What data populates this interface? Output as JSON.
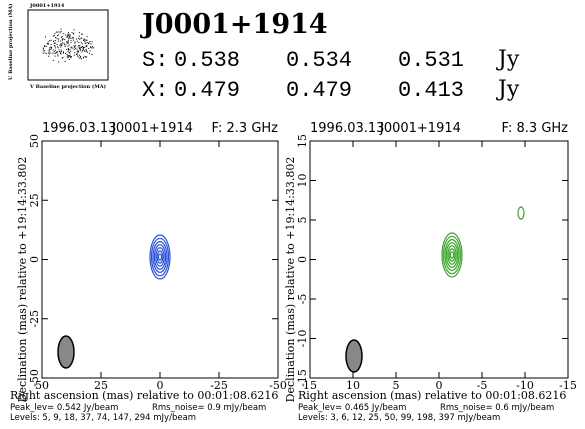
{
  "uv_plot": {
    "title": "J0001+1914",
    "x_label": "V Baseline projection (MA)",
    "y_label": "U Baseline projection (MA)"
  },
  "header": {
    "title": "J0001+1914",
    "rows": [
      {
        "band": "S:",
        "values": [
          "0.538",
          "0.534",
          "0.531"
        ],
        "unit": "Jy",
        "color": "#2b4fd6"
      },
      {
        "band": "X:",
        "values": [
          "0.479",
          "0.479",
          "0.413"
        ],
        "unit": "Jy",
        "color": "#3aa52a"
      }
    ]
  },
  "panels": [
    {
      "date": "1996.03.13",
      "source": "J0001+1914",
      "freq": "F: 2.3 GHz",
      "color": "#2b4fd6",
      "xticks": [
        50,
        25,
        0,
        -25,
        -50
      ],
      "yticks": [
        50,
        25,
        0,
        -25,
        -50
      ],
      "y_label": "Declination (mas) relative to +19:14:33.802",
      "x_label": "Right ascension (mas) relative to 00:01:08.6216",
      "peak": "Peak_lev= 0.542 Jy/beam",
      "rms": "Rms_noise= 0.9 mJy/beam",
      "levels": "Levels: 5, 9, 18, 37, 74, 147, 294 mJy/beam"
    },
    {
      "date": "1996.03.13",
      "source": "J0001+1914",
      "freq": "F: 8.3 GHz",
      "color": "#3aa52a",
      "xticks": [
        15,
        10,
        5,
        0,
        -5,
        -10,
        -15
      ],
      "yticks": [
        15,
        10,
        5,
        0,
        -5,
        -10,
        -15
      ],
      "y_label": "Declination (mas) relative to +19:14:33.802",
      "x_label": "Right ascension (mas) relative to 00:01:08.6216",
      "peak": "Peak_lev= 0.465 Jy/beam",
      "rms": "Rms_noise= 0.6 mJy/beam",
      "levels": "Levels: 3, 6, 12, 25, 50, 99, 198, 397 mJy/beam"
    }
  ]
}
